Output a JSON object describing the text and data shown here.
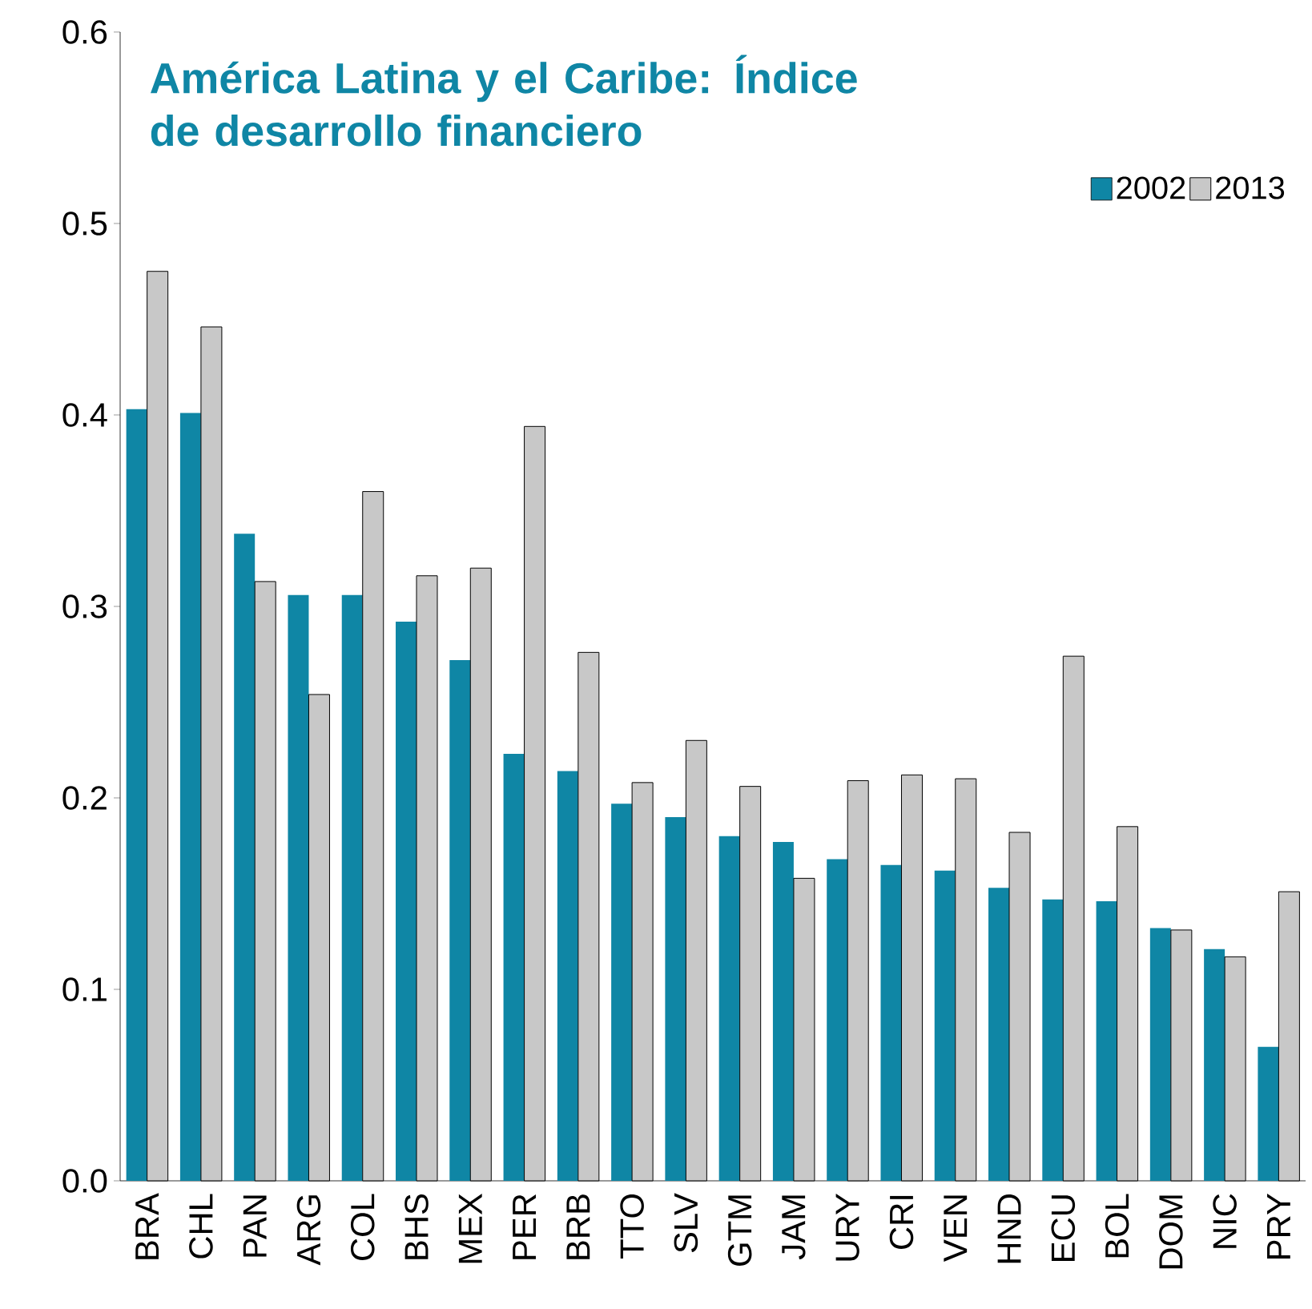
{
  "chart_data": {
    "type": "bar",
    "title": "América Latina y el Caribe: Índice de desarrollo financiero",
    "categories": [
      "BRA",
      "CHL",
      "PAN",
      "ARG",
      "COL",
      "BHS",
      "MEX",
      "PER",
      "BRB",
      "TTO",
      "SLV",
      "GTM",
      "JAM",
      "URY",
      "CRI",
      "VEN",
      "HND",
      "ECU",
      "BOL",
      "DOM",
      "NIC",
      "PRY"
    ],
    "series": [
      {
        "name": "2002",
        "color": "#0f86a5",
        "values": [
          0.403,
          0.401,
          0.338,
          0.306,
          0.306,
          0.292,
          0.272,
          0.223,
          0.214,
          0.197,
          0.19,
          0.18,
          0.177,
          0.168,
          0.165,
          0.162,
          0.153,
          0.147,
          0.146,
          0.132,
          0.121,
          0.07
        ]
      },
      {
        "name": "2013",
        "color": "#c8c8c8",
        "values": [
          0.475,
          0.446,
          0.313,
          0.254,
          0.36,
          0.316,
          0.32,
          0.394,
          0.276,
          0.208,
          0.23,
          0.206,
          0.158,
          0.209,
          0.212,
          0.21,
          0.182,
          0.274,
          0.185,
          0.131,
          0.117,
          0.151
        ]
      }
    ],
    "ylim": [
      0,
      0.6
    ],
    "yticks": [
      {
        "value": 0,
        "label": "0.0"
      },
      0.1,
      0.2,
      0.3,
      0.4,
      0.5,
      0.6
    ],
    "legend": "top right"
  }
}
